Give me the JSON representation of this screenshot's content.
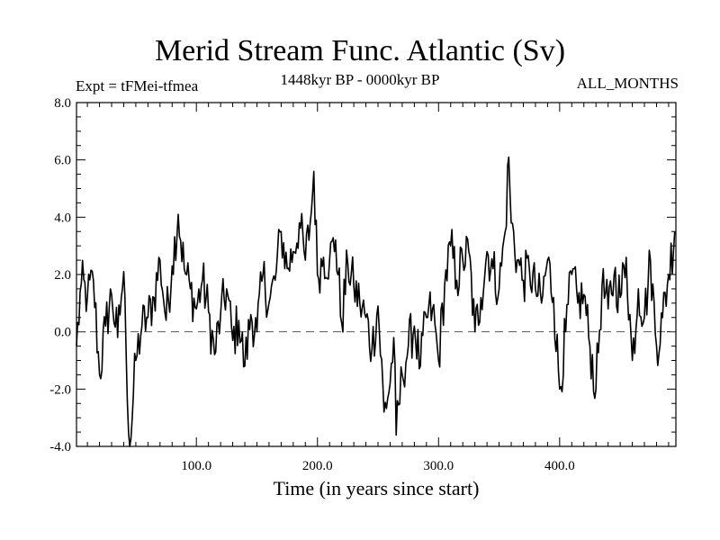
{
  "chart_data": {
    "type": "line",
    "title": "Merid Stream Func. Atlantic (Sv)",
    "subtitle_left": "Expt = tFMei-tfmea",
    "subtitle_center": "1448kyr BP - 0000kyr BP",
    "subtitle_right": "ALL_MONTHS",
    "xlabel": "Time (in years since start)",
    "ylabel": "",
    "xlim": [
      1,
      496
    ],
    "ylim": [
      -4.0,
      8.0
    ],
    "xticks": [
      100,
      200,
      300,
      400
    ],
    "xtick_labels": [
      "100.0",
      "200.0",
      "300.0",
      "400.0"
    ],
    "yticks": [
      -4,
      -2,
      0,
      2,
      4,
      6,
      8
    ],
    "ytick_labels": [
      "-4.0",
      "-2.0",
      "0.0",
      "2.0",
      "4.0",
      "6.0",
      "8.0"
    ],
    "reference_line": {
      "y": 0.0,
      "style": "dashed"
    },
    "series": [
      {
        "name": "Merid Stream Func. Atlantic",
        "x": [
          1,
          5,
          10,
          15,
          20,
          25,
          30,
          35,
          38,
          40,
          42,
          45,
          50,
          55,
          60,
          65,
          70,
          75,
          80,
          85,
          90,
          95,
          100,
          105,
          110,
          115,
          120,
          125,
          130,
          135,
          140,
          145,
          150,
          155,
          160,
          165,
          170,
          175,
          180,
          185,
          190,
          195,
          197,
          200,
          205,
          210,
          215,
          220,
          225,
          230,
          235,
          240,
          245,
          250,
          255,
          260,
          263,
          265,
          270,
          275,
          280,
          285,
          290,
          295,
          300,
          305,
          310,
          315,
          320,
          325,
          330,
          335,
          340,
          345,
          350,
          355,
          358,
          360,
          365,
          370,
          375,
          380,
          385,
          390,
          395,
          400,
          405,
          410,
          415,
          420,
          425,
          430,
          435,
          440,
          445,
          450,
          455,
          460,
          465,
          470,
          475,
          480,
          485,
          490,
          495
        ],
        "values": [
          -0.5,
          1.7,
          1.2,
          1.8,
          -1.5,
          0.2,
          1.3,
          -0.2,
          1.2,
          2.1,
          -0.8,
          -4.0,
          -1.0,
          0.2,
          0.5,
          1.2,
          2.5,
          0.4,
          2.3,
          4.1,
          2.2,
          1.5,
          0.8,
          1.8,
          0.7,
          -0.8,
          0.6,
          1.5,
          -0.3,
          0.4,
          -1.2,
          0.6,
          0.0,
          2.0,
          1.0,
          1.8,
          3.5,
          2.2,
          2.8,
          3.8,
          2.5,
          4.2,
          5.6,
          2.0,
          2.6,
          2.5,
          3.2,
          0.3,
          2.4,
          1.6,
          1.0,
          0.5,
          -0.6,
          0.9,
          -2.8,
          -1.8,
          -0.2,
          -3.6,
          -1.5,
          -0.5,
          0.2,
          -1.2,
          0.5,
          0.8,
          -1.0,
          1.6,
          3.0,
          1.8,
          2.5,
          2.8,
          0.0,
          1.2,
          2.8,
          2.2,
          1.5,
          3.5,
          6.1,
          3.8,
          2.5,
          1.8,
          2.2,
          1.5,
          1.0,
          2.5,
          1.2,
          -2.0,
          0.0,
          2.0,
          1.0,
          1.3,
          -0.5,
          -2.0,
          1.6,
          0.8,
          2.0,
          1.2,
          2.6,
          -1.0,
          1.5,
          0.5,
          2.5,
          -0.5,
          0.5,
          2.0,
          3.5
        ]
      }
    ]
  }
}
